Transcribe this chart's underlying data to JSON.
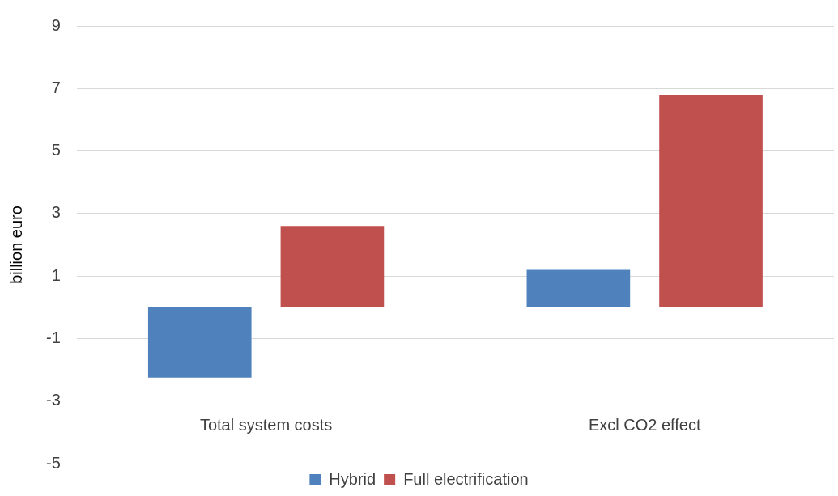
{
  "chart_data": {
    "type": "bar",
    "ylabel": "billion euro",
    "categories": [
      "Total system costs",
      "Excl CO2 effect"
    ],
    "series": [
      {
        "name": "Hybrid",
        "color": "#4f81bd",
        "values": [
          -2.25,
          1.2
        ]
      },
      {
        "name": "Full electrification",
        "color": "#c0504d",
        "values": [
          2.6,
          6.8
        ]
      }
    ],
    "ylim": [
      -5,
      9
    ],
    "yticks": [
      -5,
      -3,
      -1,
      1,
      3,
      5,
      7,
      9
    ],
    "grid": "y",
    "legend": "bottom"
  }
}
